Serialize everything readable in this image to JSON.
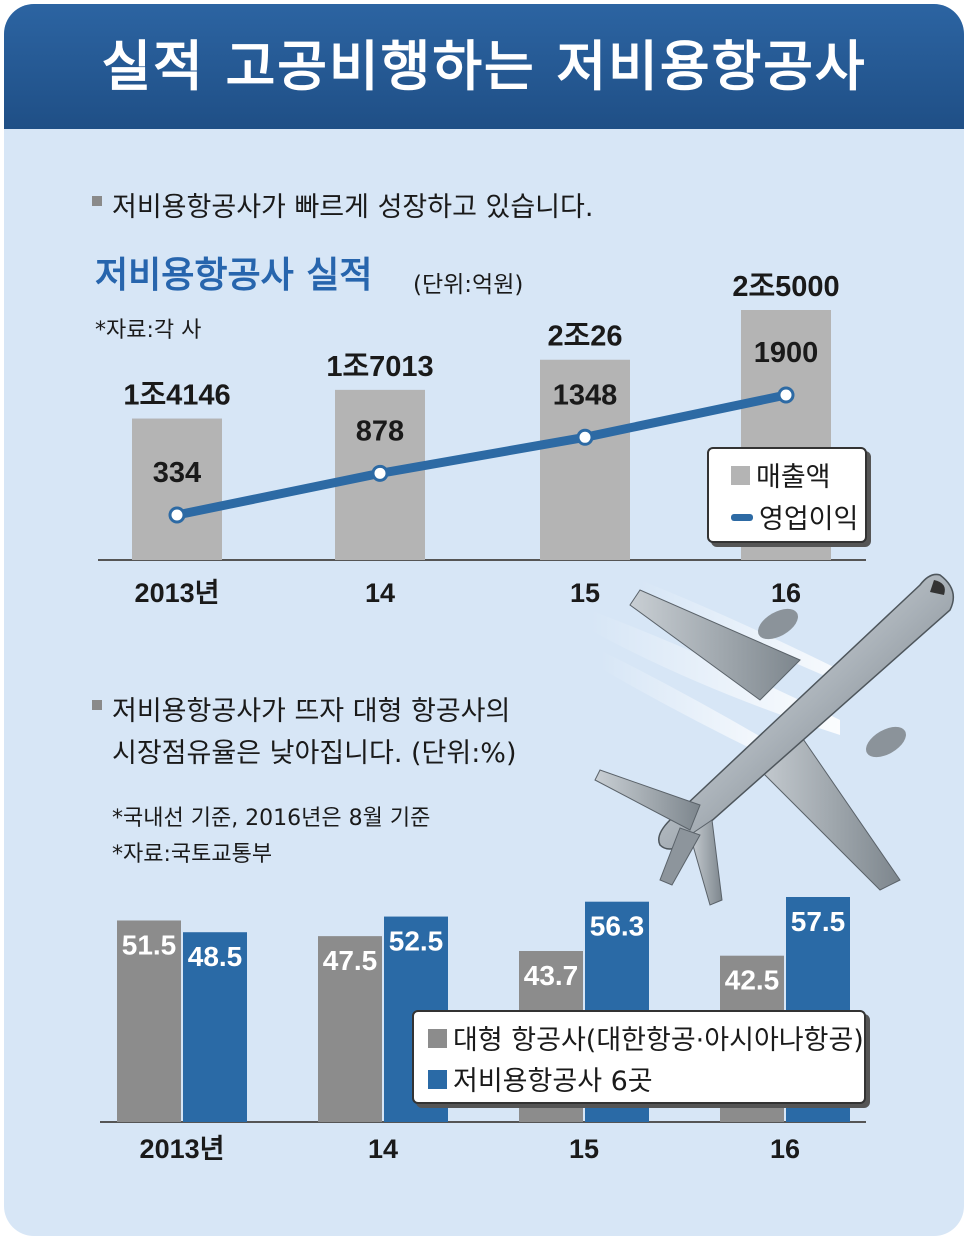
{
  "header": {
    "title": "실적 고공비행하는 저비용항공사"
  },
  "section1": {
    "note": "저비용항공사가 빠르게 성장하고 있습니다.",
    "chart_title": "저비용항공사 실적",
    "unit": "(단위:억원)",
    "source": "*자료:각 사"
  },
  "section2": {
    "note_line1": "저비용항공사가 뜨자 대형 항공사의",
    "note_line2": "시장점유율은 낮아집니다. (단위:%)",
    "footnote1": "*국내선 기준, 2016년은 8월 기준",
    "footnote2": "*자료:국토교통부"
  },
  "colors": {
    "header": "#245b97",
    "background": "#d7e6f6",
    "bar_gray": "#b4b4b4",
    "bar_dark_gray": "#8c8c8c",
    "bar_blue": "#2a6aa6",
    "line_blue": "#2d6aa4",
    "title_blue": "#2765ad"
  },
  "illustration": "airplane",
  "chart_data": [
    {
      "type": "bar",
      "title": "저비용항공사 실적",
      "unit": "(단위:억원)",
      "categories": [
        "2013년",
        "14",
        "15",
        "16"
      ],
      "series": [
        {
          "name": "매출액",
          "type": "bar",
          "values": [
            14146,
            17013,
            20026,
            25000
          ],
          "labels": [
            "1조4146",
            "1조7013",
            "2조26",
            "2조5000"
          ]
        },
        {
          "name": "영업이익",
          "type": "line",
          "values": [
            334,
            878,
            1348,
            1900
          ],
          "labels": [
            "334",
            "878",
            "1348",
            "1900"
          ]
        }
      ],
      "legend": "right"
    },
    {
      "type": "bar",
      "unit": "(단위:%)",
      "categories": [
        "2013년",
        "14",
        "15",
        "16"
      ],
      "series": [
        {
          "name": "대형 항공사(대한항공·아시아나항공)",
          "values": [
            51.5,
            47.5,
            43.7,
            42.5
          ],
          "labels": [
            "51.5",
            "47.5",
            "43.7",
            "42.5"
          ]
        },
        {
          "name": "저비용항공사 6곳",
          "values": [
            48.5,
            52.5,
            56.3,
            57.5
          ],
          "labels": [
            "48.5",
            "52.5",
            "56.3",
            "57.5"
          ]
        }
      ],
      "ylim": [
        0,
        60
      ],
      "legend": "bottom-right"
    }
  ]
}
